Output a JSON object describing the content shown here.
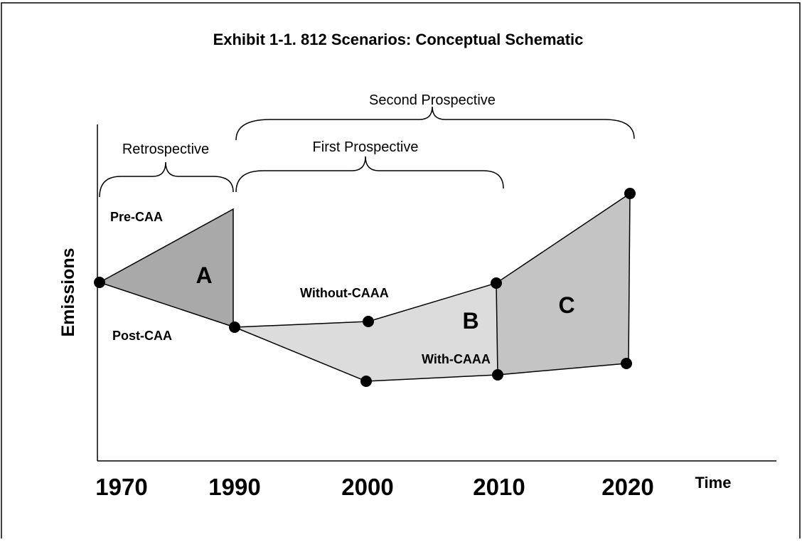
{
  "title": "Exhibit 1-1.  812 Scenarios: Conceptual Schematic",
  "y_axis_label": "Emissions",
  "x_axis_label": "Time",
  "x_labels": [
    "1970",
    "1990",
    "2000",
    "2010",
    "2020"
  ],
  "brackets": [
    "Retrospective",
    "First Prospective",
    "Second Prospective"
  ],
  "series_labels": [
    "Pre-CAA",
    "Post-CAA",
    "Without-CAAA",
    "With-CAAA"
  ],
  "regions": [
    "A",
    "B",
    "C"
  ]
}
